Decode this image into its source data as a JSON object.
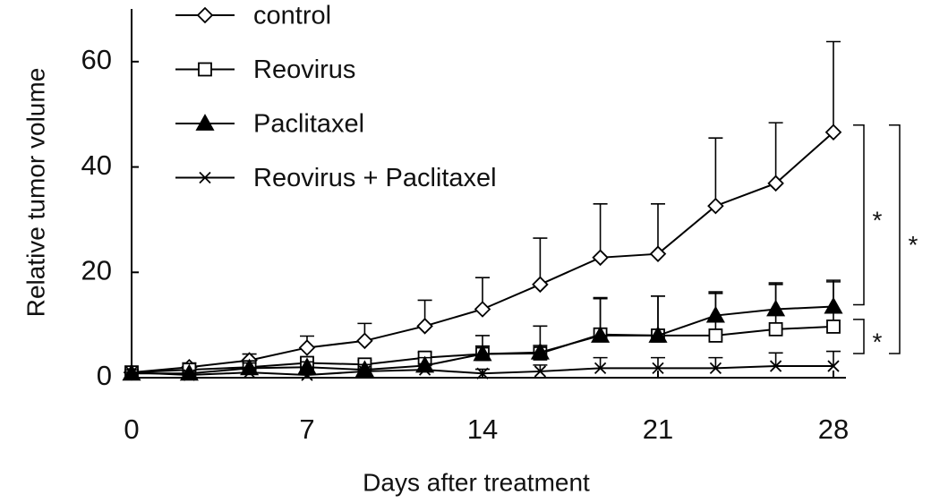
{
  "chart_data": {
    "type": "line",
    "ylabel": "Relative tumor volume",
    "xlabel": "Days after treatment",
    "x": [
      0,
      2.3,
      4.7,
      7,
      9.3,
      11.7,
      14,
      16.3,
      18.7,
      21,
      23.3,
      25.7,
      28
    ],
    "xlim": [
      0,
      28.5
    ],
    "xticks": [
      0,
      7,
      14,
      21,
      28
    ],
    "ylim": [
      0,
      70
    ],
    "yticks": [
      0,
      20,
      40,
      60
    ],
    "legend": "top-left",
    "series": [
      {
        "name": "control",
        "color": "#000000",
        "marker": "diamond",
        "values": [
          1,
          2,
          3.3,
          5.7,
          7,
          9.8,
          13,
          17.7,
          22.8,
          23.5,
          32.6,
          36.9,
          46.6
        ],
        "errors": [
          0.5,
          0.8,
          1.2,
          2.2,
          3.3,
          4.9,
          6,
          8.8,
          10.2,
          9.5,
          12.9,
          11.5,
          17.2
        ]
      },
      {
        "name": "Reovirus",
        "color": "#000000",
        "marker": "square",
        "values": [
          1,
          1.5,
          2,
          2.8,
          2.5,
          3.8,
          4.5,
          4.6,
          8.2,
          8,
          8,
          9.2,
          9.7
        ],
        "errors": [
          0.3,
          0.5,
          0.8,
          1,
          0.8,
          1,
          1.5,
          1.5,
          7,
          7.5,
          8,
          8.5,
          8.5
        ]
      },
      {
        "name": "Paclitaxel",
        "color": "#000000",
        "marker": "triangle",
        "values": [
          0.8,
          0.8,
          1.8,
          2,
          1.5,
          2.3,
          4.5,
          4.8,
          8,
          8,
          11.8,
          13,
          13.5
        ],
        "errors": [
          0.3,
          0.5,
          1,
          1,
          1,
          1.5,
          3.5,
          5,
          7,
          7.5,
          4.5,
          5,
          5
        ]
      },
      {
        "name": "Reovirus + Paclitaxel",
        "color": "#000000",
        "marker": "x",
        "values": [
          1,
          0.5,
          1,
          0.5,
          1.2,
          1.5,
          0.8,
          1.2,
          1.8,
          1.8,
          1.8,
          2.2,
          2.2
        ],
        "errors": [
          0.5,
          0.5,
          0.5,
          0.5,
          0.5,
          0.8,
          0.8,
          1.2,
          2,
          2,
          2,
          2.5,
          2.8
        ]
      }
    ],
    "annotations": [
      "*",
      "*",
      "*"
    ]
  }
}
